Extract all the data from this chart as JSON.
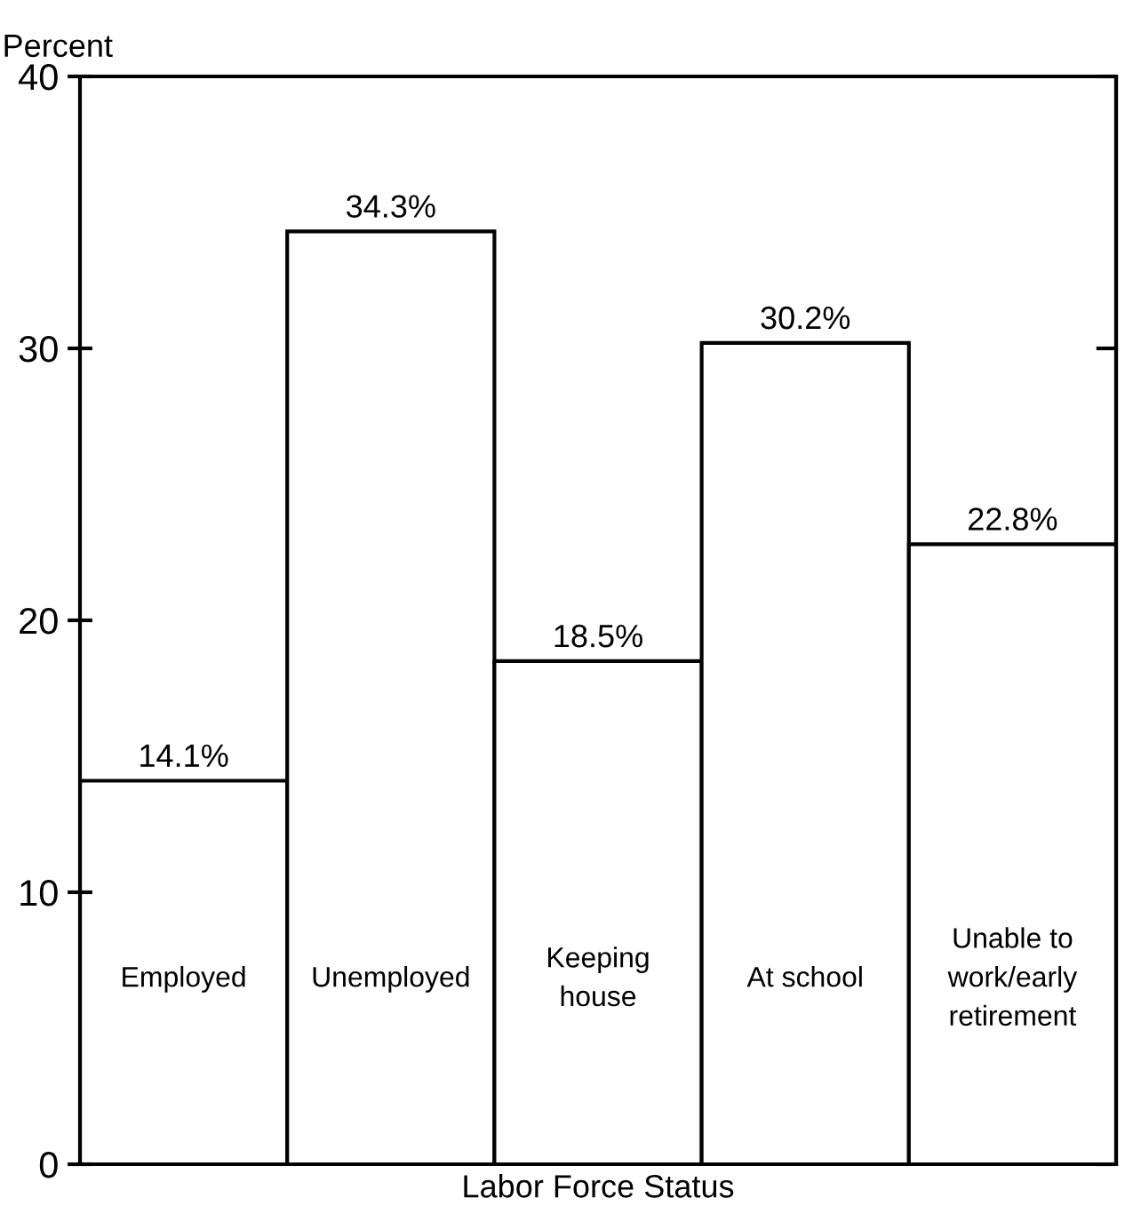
{
  "chart_data": {
    "type": "bar",
    "xlabel": "Labor Force Status",
    "ylabel": "Percent",
    "categories": [
      "Employed",
      "Unemployed",
      "Keeping\nhouse",
      "At school",
      "Unable to\nwork/early\nretirement"
    ],
    "values": [
      14.1,
      34.3,
      18.5,
      30.2,
      22.8
    ],
    "value_labels": [
      "14.1%",
      "34.3%",
      "18.5%",
      "30.2%",
      "22.8%"
    ],
    "color": "#ffffff",
    "ylim": [
      0,
      40
    ],
    "yticks": [
      0,
      10,
      20,
      30,
      40
    ],
    "grid": false
  }
}
